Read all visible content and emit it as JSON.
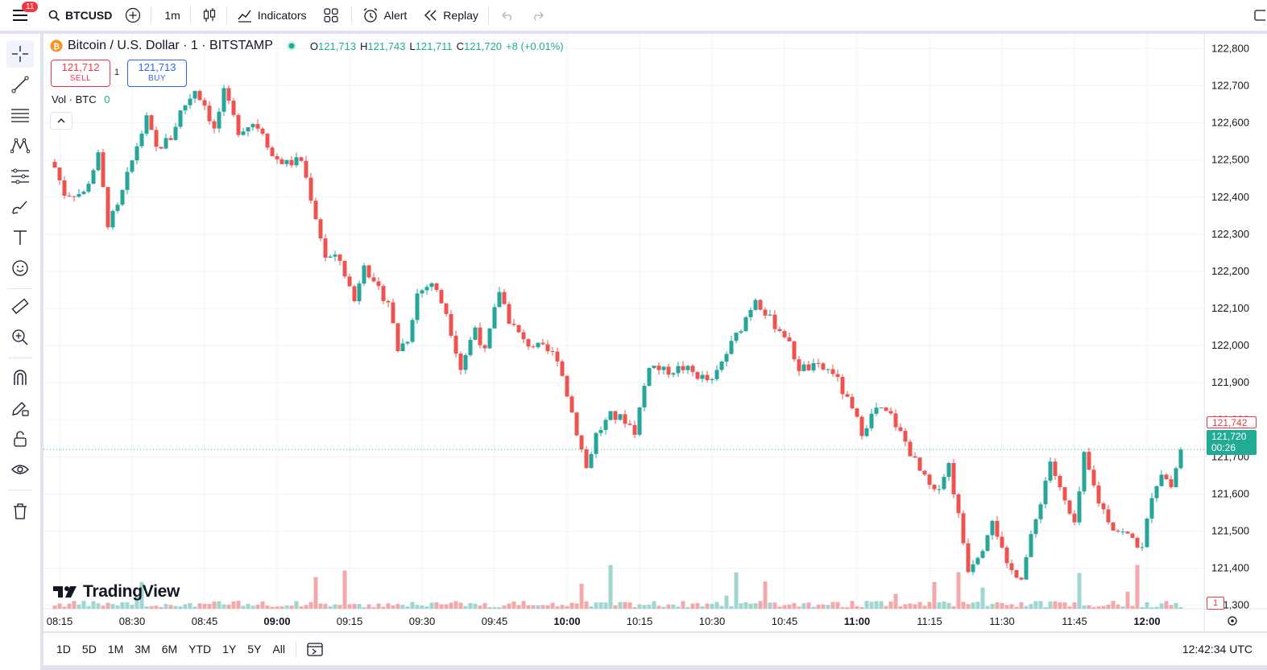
{
  "topbar": {
    "menu_badge": "11",
    "symbol": "BTCUSD",
    "interval": "1m",
    "indicators_label": "Indicators",
    "alert_label": "Alert",
    "replay_label": "Replay"
  },
  "legend": {
    "title": "Bitcoin / U.S. Dollar · 1 · BITSTAMP",
    "open_label": "O",
    "open": "121,713",
    "high_label": "H",
    "high": "121,743",
    "low_label": "L",
    "low": "121,711",
    "close_label": "C",
    "close": "121,720",
    "change": "+8 (+0.01%)"
  },
  "trade": {
    "sell_price": "121,712",
    "sell_label": "SELL",
    "spread": "1",
    "buy_price": "121,713",
    "buy_label": "BUY"
  },
  "volume_legend": {
    "label": "Vol · BTC",
    "value": "0"
  },
  "logo_text": "TradingView",
  "price_tags": {
    "high_tag": "121,742",
    "last_price": "121,720",
    "countdown": "00:26",
    "volume_tag": "1"
  },
  "bottombar": {
    "ranges": [
      "1D",
      "5D",
      "1M",
      "3M",
      "6M",
      "YTD",
      "1Y",
      "5Y",
      "All"
    ],
    "clock": "12:42:34 UTC"
  },
  "colors": {
    "up": "#26a69a",
    "down": "#ef5350",
    "up_vol": "#9fd6cf",
    "down_vol": "#f2a9ab",
    "grid": "#f0f3fa"
  },
  "chart_data": {
    "type": "candlestick",
    "symbol": "Bitcoin / U.S. Dollar · 1 · BITSTAMP",
    "interval_minutes": 1,
    "y_ticks": [
      "121,300",
      "121,400",
      "121,500",
      "121,600",
      "121,700",
      "121,800",
      "121,900",
      "122,000",
      "122,100",
      "122,200",
      "122,300",
      "122,400",
      "122,500",
      "122,600",
      "122,700",
      "122,800"
    ],
    "ylim": [
      121230,
      122840
    ],
    "x_ticks": [
      "08:15",
      "08:30",
      "08:45",
      "09:00",
      "09:15",
      "09:30",
      "09:45",
      "10:00",
      "10:15",
      "10:30",
      "10:45",
      "11:00",
      "11:15",
      "11:30",
      "11:45",
      "12:00"
    ],
    "x_start": "08:15",
    "last_price": 121720,
    "grid": true,
    "approx_close_path": [
      {
        "time": "08:14",
        "price": 122480
      },
      {
        "time": "08:16",
        "price": 122410
      },
      {
        "time": "08:20",
        "price": 122410
      },
      {
        "time": "08:23",
        "price": 122510
      },
      {
        "time": "08:25",
        "price": 122330
      },
      {
        "time": "08:27",
        "price": 122370
      },
      {
        "time": "08:31",
        "price": 122540
      },
      {
        "time": "08:33",
        "price": 122610
      },
      {
        "time": "08:35",
        "price": 122530
      },
      {
        "time": "08:38",
        "price": 122560
      },
      {
        "time": "08:40",
        "price": 122630
      },
      {
        "time": "08:43",
        "price": 122690
      },
      {
        "time": "08:45",
        "price": 122650
      },
      {
        "time": "08:47",
        "price": 122580
      },
      {
        "time": "08:49",
        "price": 122680
      },
      {
        "time": "08:52",
        "price": 122580
      },
      {
        "time": "08:55",
        "price": 122600
      },
      {
        "time": "08:57",
        "price": 122580
      },
      {
        "time": "08:59",
        "price": 122510
      },
      {
        "time": "09:02",
        "price": 122490
      },
      {
        "time": "09:05",
        "price": 122500
      },
      {
        "time": "09:07",
        "price": 122400
      },
      {
        "time": "09:10",
        "price": 122240
      },
      {
        "time": "09:13",
        "price": 122230
      },
      {
        "time": "09:16",
        "price": 122120
      },
      {
        "time": "09:18",
        "price": 122230
      },
      {
        "time": "09:20",
        "price": 122160
      },
      {
        "time": "09:23",
        "price": 122120
      },
      {
        "time": "09:25",
        "price": 121990
      },
      {
        "time": "09:27",
        "price": 122020
      },
      {
        "time": "09:29",
        "price": 122140
      },
      {
        "time": "09:32",
        "price": 122170
      },
      {
        "time": "09:35",
        "price": 122090
      },
      {
        "time": "09:38",
        "price": 121940
      },
      {
        "time": "09:41",
        "price": 122050
      },
      {
        "time": "09:43",
        "price": 121980
      },
      {
        "time": "09:46",
        "price": 122150
      },
      {
        "time": "09:48",
        "price": 122070
      },
      {
        "time": "09:51",
        "price": 122010
      },
      {
        "time": "09:55",
        "price": 121990
      },
      {
        "time": "09:58",
        "price": 121970
      },
      {
        "time": "10:02",
        "price": 121770
      },
      {
        "time": "10:04",
        "price": 121670
      },
      {
        "time": "10:06",
        "price": 121760
      },
      {
        "time": "10:09",
        "price": 121810
      },
      {
        "time": "10:12",
        "price": 121800
      },
      {
        "time": "10:14",
        "price": 121770
      },
      {
        "time": "10:17",
        "price": 121950
      },
      {
        "time": "10:20",
        "price": 121930
      },
      {
        "time": "10:24",
        "price": 121940
      },
      {
        "time": "10:27",
        "price": 121920
      },
      {
        "time": "10:30",
        "price": 121900
      },
      {
        "time": "10:33",
        "price": 121980
      },
      {
        "time": "10:36",
        "price": 122050
      },
      {
        "time": "10:39",
        "price": 122130
      },
      {
        "time": "10:42",
        "price": 122070
      },
      {
        "time": "10:45",
        "price": 122030
      },
      {
        "time": "10:48",
        "price": 121940
      },
      {
        "time": "10:52",
        "price": 121940
      },
      {
        "time": "10:55",
        "price": 121930
      },
      {
        "time": "10:58",
        "price": 121850
      },
      {
        "time": "11:01",
        "price": 121770
      },
      {
        "time": "11:04",
        "price": 121830
      },
      {
        "time": "11:07",
        "price": 121810
      },
      {
        "time": "11:10",
        "price": 121740
      },
      {
        "time": "11:13",
        "price": 121660
      },
      {
        "time": "11:16",
        "price": 121600
      },
      {
        "time": "11:19",
        "price": 121680
      },
      {
        "time": "11:21",
        "price": 121540
      },
      {
        "time": "11:23",
        "price": 121400
      },
      {
        "time": "11:26",
        "price": 121460
      },
      {
        "time": "11:28",
        "price": 121540
      },
      {
        "time": "11:31",
        "price": 121400
      },
      {
        "time": "11:34",
        "price": 121380
      },
      {
        "time": "11:37",
        "price": 121530
      },
      {
        "time": "11:40",
        "price": 121690
      },
      {
        "time": "11:42",
        "price": 121610
      },
      {
        "time": "11:45",
        "price": 121510
      },
      {
        "time": "11:47",
        "price": 121700
      },
      {
        "time": "11:50",
        "price": 121580
      },
      {
        "time": "11:53",
        "price": 121510
      },
      {
        "time": "11:57",
        "price": 121480
      },
      {
        "time": "11:59",
        "price": 121450
      },
      {
        "time": "12:01",
        "price": 121600
      },
      {
        "time": "12:03",
        "price": 121660
      },
      {
        "time": "12:05",
        "price": 121620
      },
      {
        "time": "12:07",
        "price": 121720
      }
    ]
  }
}
